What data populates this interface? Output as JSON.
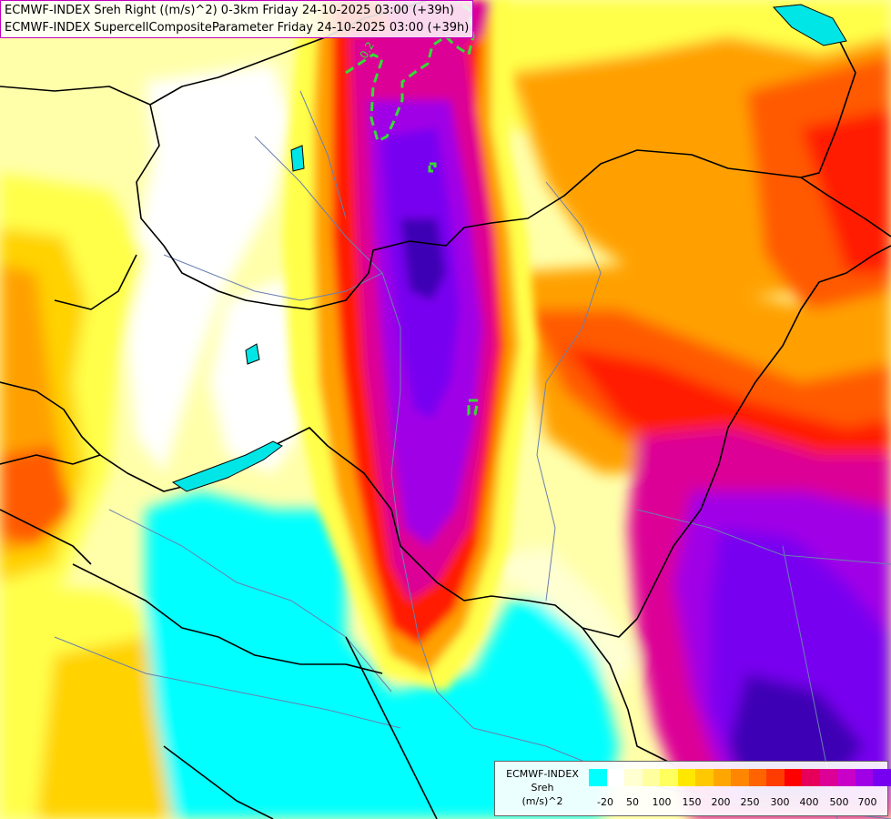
{
  "header": {
    "line1": "ECMWF-INDEX Sreh Right ((m/s)^2) 0-3km Friday 24-10-2025 03:00 (+39h)",
    "line2": "ECMWF-INDEX SupercellCompositeParameter Friday 24-10-2025 03:00 (+39h)"
  },
  "map": {
    "contour_label": "0.2",
    "contour_color": "#33dd33",
    "border_color": "#000000",
    "river_color": "#6a7fb0"
  },
  "legend": {
    "caption_line1": "ECMWF-INDEX",
    "caption_line2": "Sreh",
    "caption_line3": "(m/s)^2",
    "colors": [
      "#00ffff",
      "#ffffff",
      "#ffffd2",
      "#ffff9f",
      "#ffff5e",
      "#ffe800",
      "#ffc800",
      "#ffa600",
      "#ff8600",
      "#ff6400",
      "#ff3c00",
      "#ff0000",
      "#e6005a",
      "#dc0096",
      "#c800c8",
      "#a000e6",
      "#7800f0",
      "#4b00e0",
      "#2800b4",
      "#000090"
    ],
    "labels": [
      "-20",
      "50",
      "100",
      "150",
      "200",
      "250",
      "300",
      "400",
      "500",
      "700"
    ]
  },
  "colors": {
    "cyan": "#00ffff",
    "pale": "#ffffaa",
    "yellow": "#ffff4a",
    "gold": "#ffd200",
    "orange": "#ffa000",
    "red_orange": "#ff5a00",
    "red": "#ff1a00",
    "magenta": "#dc0096",
    "purple": "#a000e6",
    "violet": "#7800f0",
    "indigo": "#3c00b4"
  }
}
